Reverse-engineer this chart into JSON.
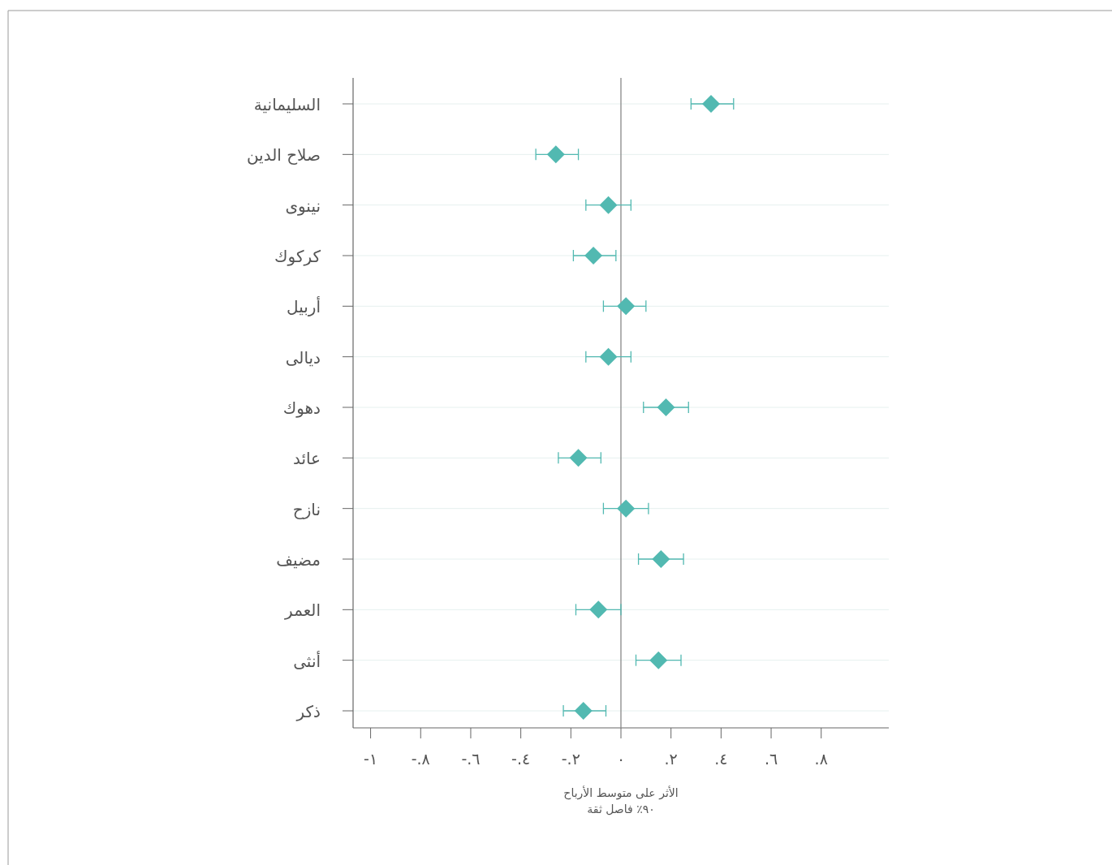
{
  "chart_data": {
    "type": "scatter",
    "orientation": "horizontal",
    "marker": "diamond",
    "grid": "y",
    "xlabel": "الأثر على متوسط الأرباح\n٩٠٪ فاصل ثقة",
    "categories": [
      "السليمانية",
      "صلاح الدين",
      "نينوى",
      "كركوك",
      "أربيل",
      "ديالى",
      "دهوك",
      "عائد",
      "نازح",
      "مضيف",
      "العمر",
      "أنثى",
      "ذكر"
    ],
    "series": [
      {
        "color": "#52b9b1",
        "values": [
          0.36,
          -0.26,
          -0.05,
          -0.11,
          0.02,
          -0.05,
          0.18,
          -0.17,
          0.02,
          0.16,
          -0.09,
          0.15,
          -0.15
        ],
        "errors": [
          [
            0.28,
            0.45
          ],
          [
            -0.34,
            -0.17
          ],
          [
            -0.14,
            0.04
          ],
          [
            -0.19,
            -0.02
          ],
          [
            -0.07,
            0.1
          ],
          [
            -0.14,
            0.04
          ],
          [
            0.09,
            0.27
          ],
          [
            -0.25,
            -0.08
          ],
          [
            -0.07,
            0.11
          ],
          [
            0.07,
            0.25
          ],
          [
            -0.18,
            0.0
          ],
          [
            0.06,
            0.24
          ],
          [
            -0.23,
            -0.06
          ]
        ]
      }
    ],
    "xlim": [
      -1.07,
      1.07
    ],
    "xticks": [
      {
        "value": -1,
        "label": "-١"
      },
      {
        "value": -0.8,
        "label": "-.٨"
      },
      {
        "value": -0.6,
        "label": "-.٦"
      },
      {
        "value": -0.4,
        "label": "-.٤"
      },
      {
        "value": -0.2,
        "label": "-.٢"
      },
      {
        "value": 0,
        "label": "٠"
      },
      {
        "value": 0.2,
        "label": ".٢"
      },
      {
        "value": 0.4,
        "label": ".٤"
      },
      {
        "value": 0.6,
        "label": ".٦"
      },
      {
        "value": 0.8,
        "label": ".٨"
      }
    ],
    "ref_lines": [
      {
        "axis": "x",
        "value": 0,
        "color": "#888888"
      }
    ]
  }
}
